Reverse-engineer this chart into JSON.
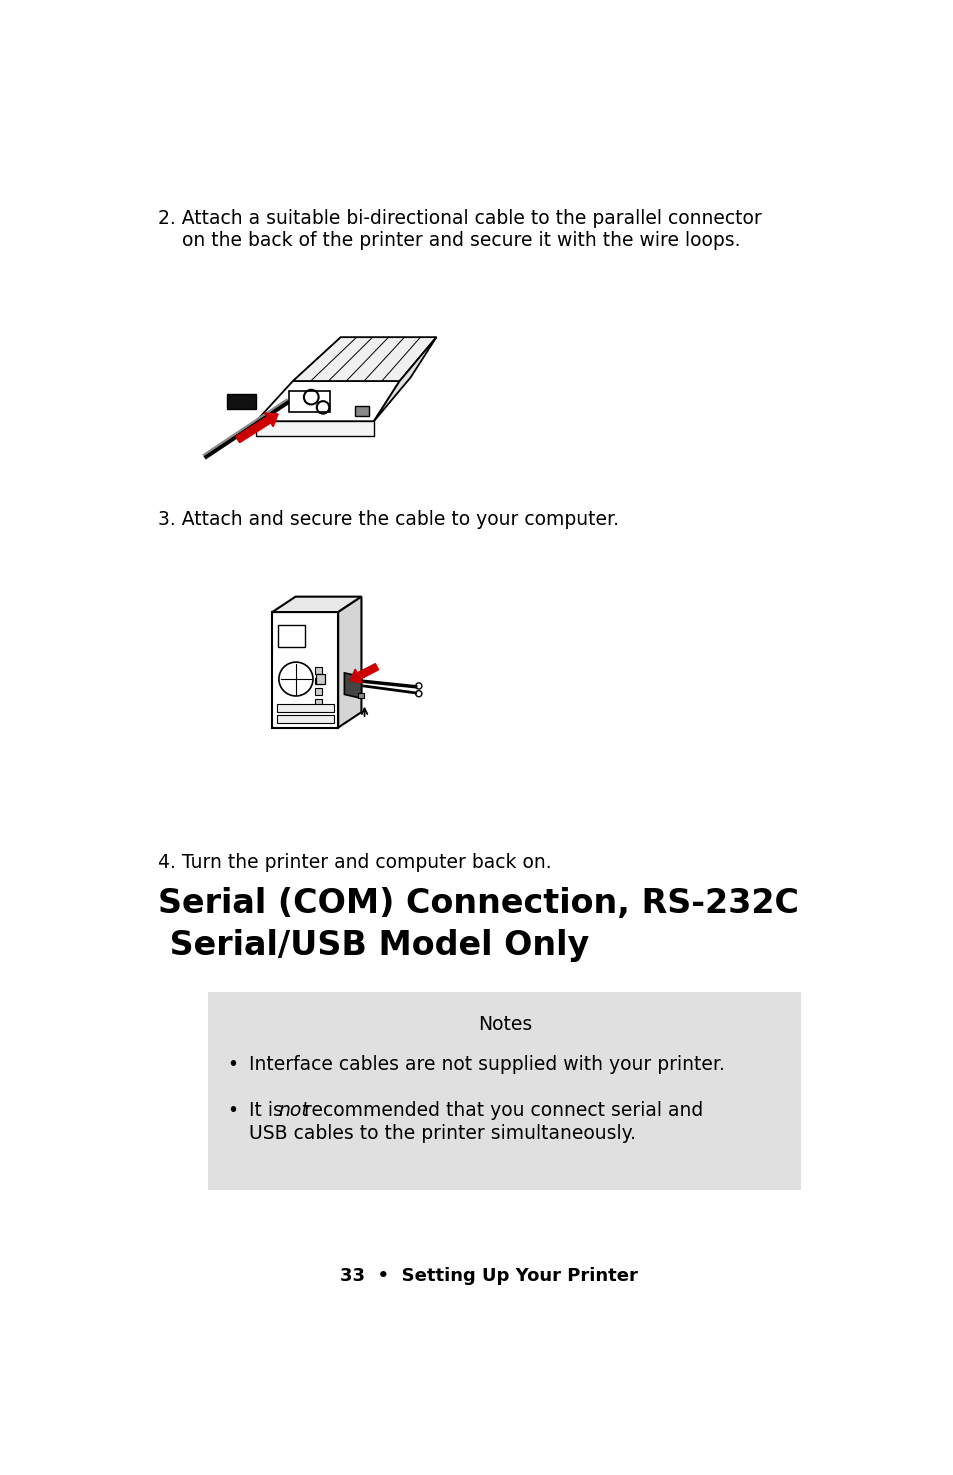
{
  "bg_color": "#ffffff",
  "page_width": 9.54,
  "page_height": 14.75,
  "ml": 0.62,
  "step2_line1": "2. Attach a suitable bi-directional cable to the parallel connector",
  "step2_line2": "    on the back of the printer and secure it with the wire loops.",
  "step3_text": "3. Attach and secure the cable to your computer.",
  "step4_text": "4. Turn the printer and computer back on.",
  "section_title_line1": "Serial (COM) Connection, RS-232C",
  "section_title_line2": " Serial/USB Model Only",
  "notes_title": "Notes",
  "note1": "Interface cables are not supplied with your printer.",
  "note2a": "It is ",
  "note2b": "not",
  "note2c": " recommended that you connect serial and",
  "note2d": "USB cables to the printer simultaneously.",
  "footer": "33  •  Setting Up Your Printer",
  "notes_bg": "#e0e0e0",
  "text_color": "#000000",
  "red_color": "#cc0000",
  "text_fontsize": 13.5,
  "heading_fontsize": 24,
  "footer_fontsize": 13
}
